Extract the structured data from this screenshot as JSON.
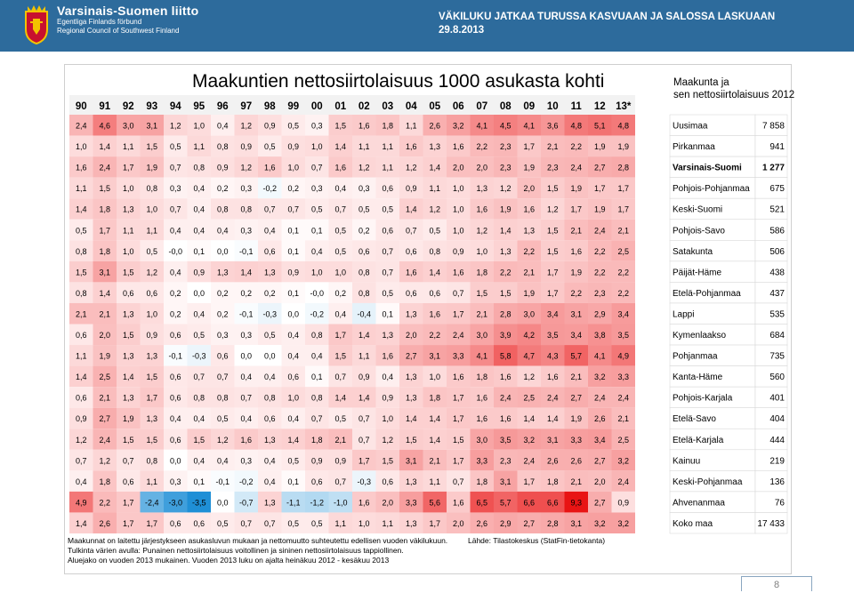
{
  "header": {
    "org_name": "Varsinais-Suomen liitto",
    "org_sv": "Egentliga Finlands förbund",
    "org_en": "Regional Council of Southwest Finland",
    "slide_title": "VÄKILUKU JATKAA TURUSSA KASVUAAN JA SALOSSA LASKUAAN",
    "slide_date": "29.8.2013",
    "logo_icon": "coat-of-arms-icon"
  },
  "colors": {
    "header_bg": "#2d6b9c",
    "positive": "#e8141b",
    "negative": "#1f8fd6",
    "highlight_row": "#000000"
  },
  "chart_data": {
    "type": "heatmap",
    "title": "Maakuntien nettosiirtolaisuus 1000 asukasta kohti",
    "side_title_line1": "Maakunta ja",
    "side_title_line2": "sen nettosiirtolaisuus 2012",
    "years": [
      "90",
      "91",
      "92",
      "93",
      "94",
      "95",
      "96",
      "97",
      "98",
      "99",
      "00",
      "01",
      "02",
      "03",
      "04",
      "05",
      "06",
      "07",
      "08",
      "09",
      "10",
      "11",
      "12",
      "13*"
    ],
    "rows": [
      {
        "region": "Uusimaa",
        "net": "7 858",
        "values": [
          "2,4",
          "4,6",
          "3,0",
          "3,1",
          "1,2",
          "1,0",
          "0,4",
          "1,2",
          "0,9",
          "0,5",
          "0,3",
          "1,5",
          "1,6",
          "1,8",
          "1,1",
          "2,6",
          "3,2",
          "4,1",
          "4,5",
          "4,1",
          "3,6",
          "4,8",
          "5,1",
          "4,8"
        ]
      },
      {
        "region": "Pirkanmaa",
        "net": "941",
        "values": [
          "1,0",
          "1,4",
          "1,1",
          "1,5",
          "0,5",
          "1,1",
          "0,8",
          "0,9",
          "0,5",
          "0,9",
          "1,0",
          "1,4",
          "1,1",
          "1,1",
          "1,6",
          "1,3",
          "1,6",
          "2,2",
          "2,3",
          "1,7",
          "2,1",
          "2,2",
          "1,9",
          "1,9"
        ]
      },
      {
        "region": "Varsinais-Suomi",
        "net": "1 277",
        "bold": true,
        "values": [
          "1,6",
          "2,4",
          "1,7",
          "1,9",
          "0,7",
          "0,8",
          "0,9",
          "1,2",
          "1,6",
          "1,0",
          "0,7",
          "1,6",
          "1,2",
          "1,1",
          "1,2",
          "1,4",
          "2,0",
          "2,0",
          "2,3",
          "1,9",
          "2,3",
          "2,4",
          "2,7",
          "2,8"
        ]
      },
      {
        "region": "Pohjois-Pohjanmaa",
        "net": "675",
        "values": [
          "1,1",
          "1,5",
          "1,0",
          "0,8",
          "0,3",
          "0,4",
          "0,2",
          "0,3",
          "-0,2",
          "0,2",
          "0,3",
          "0,4",
          "0,3",
          "0,6",
          "0,9",
          "1,1",
          "1,0",
          "1,3",
          "1,2",
          "2,0",
          "1,5",
          "1,9",
          "1,7",
          "1,7"
        ]
      },
      {
        "region": "Keski-Suomi",
        "net": "521",
        "values": [
          "1,4",
          "1,8",
          "1,3",
          "1,0",
          "0,7",
          "0,4",
          "0,8",
          "0,8",
          "0,7",
          "0,7",
          "0,5",
          "0,7",
          "0,5",
          "0,5",
          "1,4",
          "1,2",
          "1,0",
          "1,6",
          "1,9",
          "1,6",
          "1,2",
          "1,7",
          "1,9",
          "1,7"
        ]
      },
      {
        "region": "Pohjois-Savo",
        "net": "586",
        "values": [
          "0,5",
          "1,7",
          "1,1",
          "1,1",
          "0,4",
          "0,4",
          "0,4",
          "0,3",
          "0,4",
          "0,1",
          "0,1",
          "0,5",
          "0,2",
          "0,6",
          "0,7",
          "0,5",
          "1,0",
          "1,2",
          "1,4",
          "1,3",
          "1,5",
          "2,1",
          "2,4",
          "2,1"
        ]
      },
      {
        "region": "Satakunta",
        "net": "506",
        "values": [
          "0,8",
          "1,8",
          "1,0",
          "0,5",
          "-0,0",
          "0,1",
          "0,0",
          "-0,1",
          "0,6",
          "0,1",
          "0,4",
          "0,5",
          "0,6",
          "0,7",
          "0,6",
          "0,8",
          "0,9",
          "1,0",
          "1,3",
          "2,2",
          "1,5",
          "1,6",
          "2,2",
          "2,5"
        ]
      },
      {
        "region": "Päijät-Häme",
        "net": "438",
        "values": [
          "1,5",
          "3,1",
          "1,5",
          "1,2",
          "0,4",
          "0,9",
          "1,3",
          "1,4",
          "1,3",
          "0,9",
          "1,0",
          "1,0",
          "0,8",
          "0,7",
          "1,6",
          "1,4",
          "1,6",
          "1,8",
          "2,2",
          "2,1",
          "1,7",
          "1,9",
          "2,2",
          "2,2"
        ]
      },
      {
        "region": "Etelä-Pohjanmaa",
        "net": "437",
        "values": [
          "0,8",
          "1,4",
          "0,6",
          "0,6",
          "0,2",
          "0,0",
          "0,2",
          "0,2",
          "0,2",
          "0,1",
          "-0,0",
          "0,2",
          "0,8",
          "0,5",
          "0,6",
          "0,6",
          "0,7",
          "1,5",
          "1,5",
          "1,9",
          "1,7",
          "2,2",
          "2,3",
          "2,2"
        ]
      },
      {
        "region": "Lappi",
        "net": "535",
        "values": [
          "2,1",
          "2,1",
          "1,3",
          "1,0",
          "0,2",
          "0,4",
          "0,2",
          "-0,1",
          "-0,3",
          "0,0",
          "-0,2",
          "0,4",
          "-0,4",
          "0,1",
          "1,3",
          "1,6",
          "1,7",
          "2,1",
          "2,8",
          "3,0",
          "3,4",
          "3,1",
          "2,9",
          "3,4"
        ]
      },
      {
        "region": "Kymenlaakso",
        "net": "684",
        "values": [
          "0,6",
          "2,0",
          "1,5",
          "0,9",
          "0,6",
          "0,5",
          "0,3",
          "0,3",
          "0,5",
          "0,4",
          "0,8",
          "1,7",
          "1,4",
          "1,3",
          "2,0",
          "2,2",
          "2,4",
          "3,0",
          "3,9",
          "4,2",
          "3,5",
          "3,4",
          "3,8",
          "3,5"
        ]
      },
      {
        "region": "Pohjanmaa",
        "net": "735",
        "values": [
          "1,1",
          "1,9",
          "1,3",
          "1,3",
          "-0,1",
          "-0,3",
          "0,6",
          "0,0",
          "0,0",
          "0,4",
          "0,4",
          "1,5",
          "1,1",
          "1,6",
          "2,7",
          "3,1",
          "3,3",
          "4,1",
          "5,8",
          "4,7",
          "4,3",
          "5,7",
          "4,1",
          "4,9"
        ]
      },
      {
        "region": "Kanta-Häme",
        "net": "560",
        "values": [
          "1,4",
          "2,5",
          "1,4",
          "1,5",
          "0,6",
          "0,7",
          "0,7",
          "0,4",
          "0,4",
          "0,6",
          "0,1",
          "0,7",
          "0,9",
          "0,4",
          "1,3",
          "1,0",
          "1,6",
          "1,8",
          "1,6",
          "1,2",
          "1,6",
          "2,1",
          "3,2",
          "3,3"
        ]
      },
      {
        "region": "Pohjois-Karjala",
        "net": "401",
        "values": [
          "0,6",
          "2,1",
          "1,3",
          "1,7",
          "0,6",
          "0,8",
          "0,8",
          "0,7",
          "0,8",
          "1,0",
          "0,8",
          "1,4",
          "1,4",
          "0,9",
          "1,3",
          "1,8",
          "1,7",
          "1,6",
          "2,4",
          "2,5",
          "2,4",
          "2,7",
          "2,4",
          "2,4"
        ]
      },
      {
        "region": "Etelä-Savo",
        "net": "404",
        "values": [
          "0,9",
          "2,7",
          "1,9",
          "1,3",
          "0,4",
          "0,4",
          "0,5",
          "0,4",
          "0,6",
          "0,4",
          "0,7",
          "0,5",
          "0,7",
          "1,0",
          "1,4",
          "1,4",
          "1,7",
          "1,6",
          "1,6",
          "1,4",
          "1,4",
          "1,9",
          "2,6",
          "2,1"
        ]
      },
      {
        "region": "Etelä-Karjala",
        "net": "444",
        "values": [
          "1,2",
          "2,4",
          "1,5",
          "1,5",
          "0,6",
          "1,5",
          "1,2",
          "1,6",
          "1,3",
          "1,4",
          "1,8",
          "2,1",
          "0,7",
          "1,2",
          "1,5",
          "1,4",
          "1,5",
          "3,0",
          "3,5",
          "3,2",
          "3,1",
          "3,3",
          "3,4",
          "2,5"
        ]
      },
      {
        "region": "Kainuu",
        "net": "219",
        "values": [
          "0,7",
          "1,2",
          "0,7",
          "0,8",
          "0,0",
          "0,4",
          "0,4",
          "0,3",
          "0,4",
          "0,5",
          "0,9",
          "0,9",
          "1,7",
          "1,5",
          "3,1",
          "2,1",
          "1,7",
          "3,3",
          "2,3",
          "2,4",
          "2,6",
          "2,6",
          "2,7",
          "3,2"
        ]
      },
      {
        "region": "Keski-Pohjanmaa",
        "net": "136",
        "values": [
          "0,4",
          "1,8",
          "0,6",
          "1,1",
          "0,3",
          "0,1",
          "-0,1",
          "-0,2",
          "0,4",
          "0,1",
          "0,6",
          "0,7",
          "-0,3",
          "0,6",
          "1,3",
          "1,1",
          "0,7",
          "1,8",
          "3,1",
          "1,7",
          "1,8",
          "2,1",
          "2,0",
          "2,4"
        ]
      },
      {
        "region": "Ahvenanmaa",
        "net": "76",
        "values": [
          "4,9",
          "2,2",
          "1,7",
          "-2,4",
          "-3,0",
          "-3,5",
          "0,0",
          "-0,7",
          "1,3",
          "-1,1",
          "-1,2",
          "-1,0",
          "1,6",
          "2,0",
          "3,3",
          "5,6",
          "1,6",
          "6,5",
          "5,7",
          "6,6",
          "6,6",
          "9,3",
          "2,7",
          "0,9"
        ]
      },
      {
        "region": "Koko maa",
        "net": "17 433",
        "values": [
          "1,4",
          "2,6",
          "1,7",
          "1,7",
          "0,6",
          "0,6",
          "0,5",
          "0,7",
          "0,7",
          "0,5",
          "0,5",
          "1,1",
          "1,0",
          "1,1",
          "1,3",
          "1,7",
          "2,0",
          "2,6",
          "2,9",
          "2,7",
          "2,8",
          "3,1",
          "3,2",
          "3,2"
        ]
      }
    ]
  },
  "notes": {
    "line1": "Maakunnat on laitettu järjestykseen asukasluvun mukaan ja nettomuutto suhteutettu edellisen vuoden väkilukuun.",
    "line2": "Tulkinta värien avulla: Punainen nettosiirtolaisuus voitollinen ja sininen nettosiirtolaisuus tappiollinen.",
    "line3": "Aluejako on vuoden 2013 mukainen. Vuoden 2013 luku on ajalta heinäkuu 2012 - kesäkuu 2013",
    "source": "Lähde: Tilastokeskus (StatFin-tietokanta)"
  },
  "page_number": "8"
}
